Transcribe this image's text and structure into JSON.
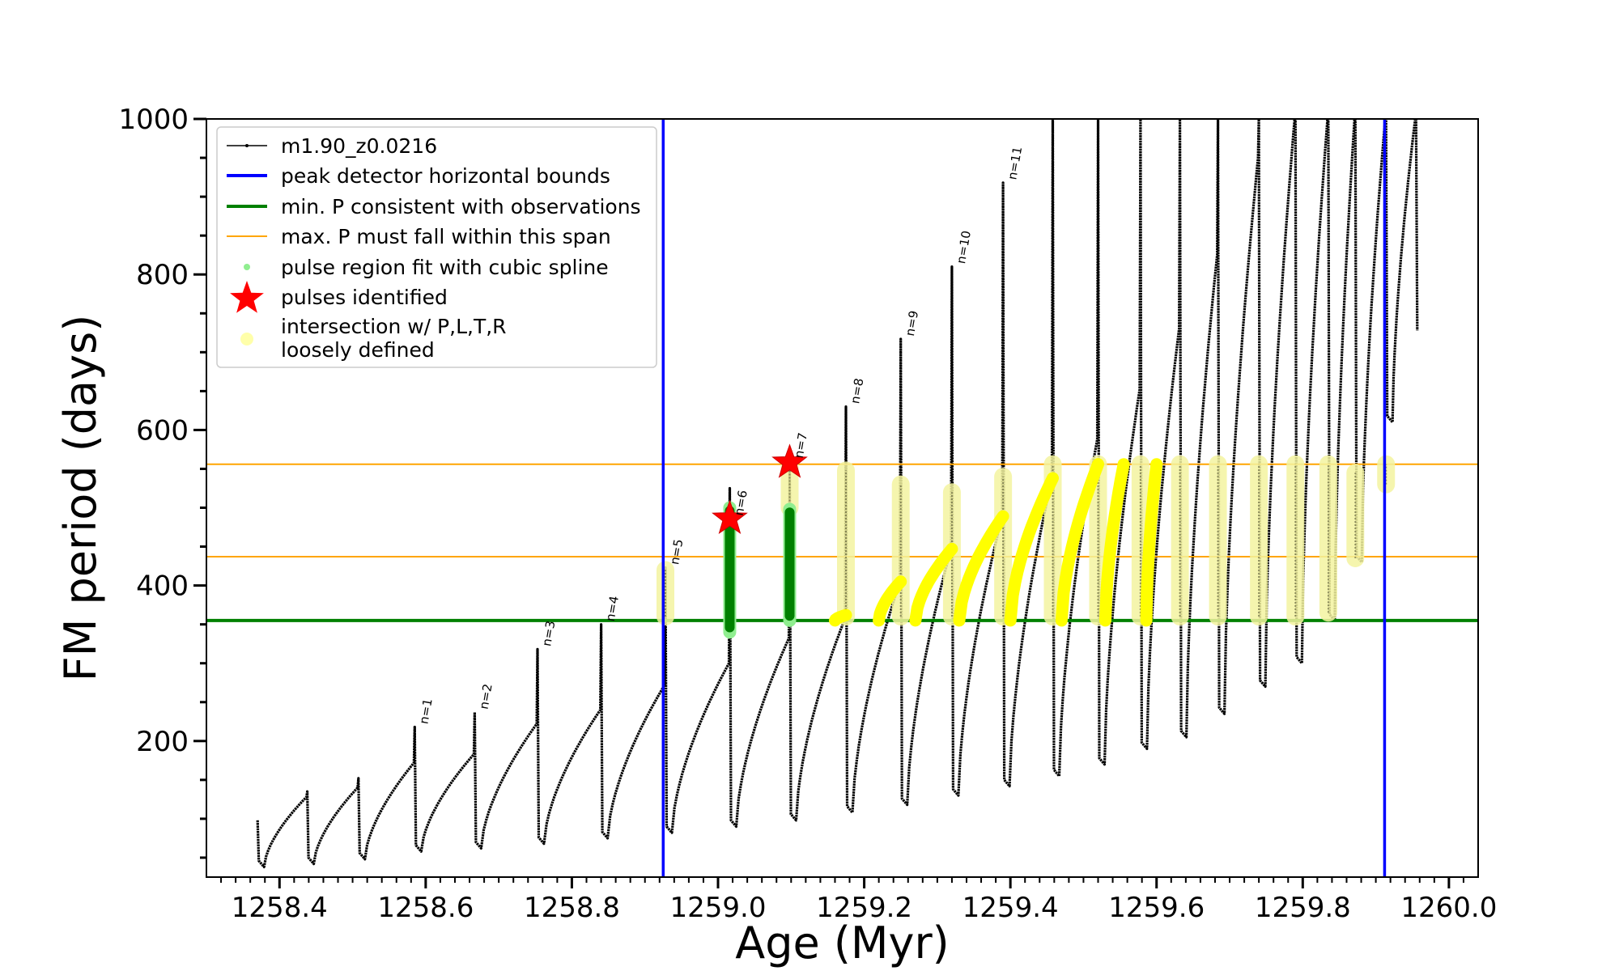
{
  "chart_data": {
    "type": "line",
    "title": "",
    "xlabel": "Age (Myr)",
    "ylabel": "FM period (days)",
    "xlim": [
      1258.3,
      1260.04
    ],
    "ylim": [
      25,
      1000
    ],
    "x_ticks": [
      1258.4,
      1258.6,
      1258.8,
      1259.0,
      1259.2,
      1259.4,
      1259.6,
      1259.8,
      1260.0
    ],
    "x_tick_labels": [
      "1258.4",
      "1258.6",
      "1258.8",
      "1259.0",
      "1259.2",
      "1259.4",
      "1259.6",
      "1259.8",
      "1260.0"
    ],
    "y_ticks": [
      200,
      400,
      600,
      800,
      1000
    ],
    "y_tick_labels": [
      "200",
      "400",
      "600",
      "800",
      "1000"
    ],
    "grid": false,
    "legend_placement": "upper-left",
    "legend": [
      {
        "label": "m1.90_z0.0216",
        "kind": "line-marker",
        "color": "#000000"
      },
      {
        "label": "peak detector horizontal bounds",
        "kind": "line",
        "color": "#0000ff"
      },
      {
        "label": "min. P consistent with observations",
        "kind": "line",
        "color": "#008000"
      },
      {
        "label": "max. P must fall within this span",
        "kind": "thin-line",
        "color": "#ffa500"
      },
      {
        "label": "pulse region fit with cubic spline",
        "kind": "dot",
        "color": "#90ee90"
      },
      {
        "label": "pulses identified",
        "kind": "star",
        "color": "#ff0000"
      },
      {
        "label": "intersection w/ P,L,T,R\nloosely defined",
        "kind": "big-dot",
        "color": "#ffffaa"
      }
    ],
    "vertical_lines": {
      "name": "peak detector horizontal bounds",
      "color": "#0000ff",
      "x": [
        1258.925,
        1259.912
      ]
    },
    "min_period_line": {
      "name": "min. P consistent with observations",
      "color": "#008000",
      "y": 355
    },
    "max_period_span": {
      "name": "max. P must fall within this span",
      "color": "#ffa500",
      "y": [
        437,
        556
      ]
    },
    "track": {
      "name": "m1.90_z0.0216",
      "color": "#000000",
      "pulses": [
        {
          "x": 1258.37,
          "min": 38,
          "peak": 98,
          "end": 128
        },
        {
          "x": 1258.438,
          "min": 42,
          "peak": 135,
          "end": 140
        },
        {
          "x": 1258.508,
          "min": 48,
          "peak": 152,
          "end": 172
        },
        {
          "x": 1258.585,
          "min": 58,
          "peak": 218,
          "end": 183
        },
        {
          "x": 1258.667,
          "min": 62,
          "peak": 237,
          "end": 222
        },
        {
          "x": 1258.753,
          "min": 68,
          "peak": 318,
          "end": 240
        },
        {
          "x": 1258.84,
          "min": 75,
          "peak": 350,
          "end": 272
        },
        {
          "x": 1258.928,
          "min": 82,
          "peak": 423,
          "end": 300
        },
        {
          "x": 1259.016,
          "min": 90,
          "peak": 525,
          "end": 332
        },
        {
          "x": 1259.098,
          "min": 98,
          "peak": 560,
          "end": 358
        },
        {
          "x": 1259.175,
          "min": 108,
          "peak": 630,
          "end": 405
        },
        {
          "x": 1259.25,
          "min": 118,
          "peak": 717,
          "end": 447
        },
        {
          "x": 1259.32,
          "min": 130,
          "peak": 810,
          "end": 489
        },
        {
          "x": 1259.39,
          "min": 142,
          "peak": 918,
          "end": 538
        },
        {
          "x": 1259.458,
          "min": 155,
          "peak": 1000,
          "end": 588
        },
        {
          "x": 1259.52,
          "min": 170,
          "peak": 1000,
          "end": 652
        },
        {
          "x": 1259.578,
          "min": 190,
          "peak": 1000,
          "end": 730
        },
        {
          "x": 1259.632,
          "min": 205,
          "peak": 1000,
          "end": 825
        },
        {
          "x": 1259.684,
          "min": 235,
          "peak": 1000,
          "end": 950
        },
        {
          "x": 1259.74,
          "min": 270,
          "peak": 1000,
          "end": 1000
        },
        {
          "x": 1259.79,
          "min": 300,
          "peak": 1000,
          "end": 1000
        },
        {
          "x": 1259.835,
          "min": 355,
          "peak": 1000,
          "end": 1000
        },
        {
          "x": 1259.872,
          "min": 430,
          "peak": 1000,
          "end": 1000
        },
        {
          "x": 1259.914,
          "min": 610,
          "peak": 1000,
          "end": 1000
        },
        {
          "x": 1259.955,
          "min": 720,
          "peak": 1000,
          "end": 1000
        }
      ]
    },
    "pulse_labels": [
      {
        "text": "n=1",
        "x": 1258.585,
        "y": 218
      },
      {
        "text": "n=2",
        "x": 1258.667,
        "y": 237
      },
      {
        "text": "n=3",
        "x": 1258.753,
        "y": 318
      },
      {
        "text": "n=4",
        "x": 1258.84,
        "y": 350
      },
      {
        "text": "n=5",
        "x": 1258.928,
        "y": 423
      },
      {
        "text": "n=6",
        "x": 1259.016,
        "y": 486
      },
      {
        "text": "n=7",
        "x": 1259.098,
        "y": 560
      },
      {
        "text": "n=8",
        "x": 1259.175,
        "y": 630
      },
      {
        "text": "n=9",
        "x": 1259.25,
        "y": 717
      },
      {
        "text": "n=10",
        "x": 1259.32,
        "y": 810
      },
      {
        "text": "n=11",
        "x": 1259.39,
        "y": 918
      }
    ],
    "spline_fit_regions": {
      "name": "pulse region fit with cubic spline",
      "color": "#008000",
      "segments": [
        {
          "x": 1259.016,
          "y": [
            340,
            500
          ]
        },
        {
          "x": 1259.098,
          "y": [
            355,
            498
          ]
        }
      ]
    },
    "pulses_identified": {
      "name": "pulses identified",
      "color": "#ff0000",
      "points": [
        {
          "x": 1259.016,
          "y": 486
        },
        {
          "x": 1259.098,
          "y": 558
        }
      ]
    },
    "intersection_regions": {
      "name": "intersection w/ P,L,T,R\nloosely defined",
      "color": "#ffff00",
      "vertical": [
        {
          "x": 1258.928,
          "y": [
            360,
            420
          ]
        },
        {
          "x": 1259.098,
          "y": [
            500,
            556
          ]
        },
        {
          "x": 1259.175,
          "y": [
            360,
            548
          ]
        },
        {
          "x": 1259.25,
          "y": [
            360,
            530
          ]
        },
        {
          "x": 1259.32,
          "y": [
            360,
            520
          ]
        },
        {
          "x": 1259.39,
          "y": [
            360,
            540
          ]
        },
        {
          "x": 1259.458,
          "y": [
            360,
            556
          ]
        },
        {
          "x": 1259.52,
          "y": [
            360,
            556
          ]
        },
        {
          "x": 1259.578,
          "y": [
            360,
            556
          ]
        },
        {
          "x": 1259.632,
          "y": [
            360,
            556
          ]
        },
        {
          "x": 1259.684,
          "y": [
            360,
            556
          ]
        },
        {
          "x": 1259.74,
          "y": [
            360,
            556
          ]
        },
        {
          "x": 1259.79,
          "y": [
            360,
            556
          ]
        },
        {
          "x": 1259.835,
          "y": [
            365,
            556
          ]
        },
        {
          "x": 1259.872,
          "y": [
            435,
            545
          ]
        },
        {
          "x": 1259.914,
          "y": [
            530,
            556
          ]
        }
      ],
      "curves": [
        {
          "x0": 1259.16,
          "x1": 1259.175,
          "y0": 355,
          "y1": 362
        },
        {
          "x0": 1259.22,
          "x1": 1259.25,
          "y0": 355,
          "y1": 405
        },
        {
          "x0": 1259.27,
          "x1": 1259.32,
          "y0": 355,
          "y1": 447
        },
        {
          "x0": 1259.33,
          "x1": 1259.39,
          "y0": 355,
          "y1": 489
        },
        {
          "x0": 1259.4,
          "x1": 1259.458,
          "y0": 355,
          "y1": 538
        },
        {
          "x0": 1259.47,
          "x1": 1259.52,
          "y0": 355,
          "y1": 556
        },
        {
          "x0": 1259.53,
          "x1": 1259.555,
          "y0": 355,
          "y1": 556
        },
        {
          "x0": 1259.586,
          "x1": 1259.6,
          "y0": 355,
          "y1": 556
        }
      ]
    }
  }
}
